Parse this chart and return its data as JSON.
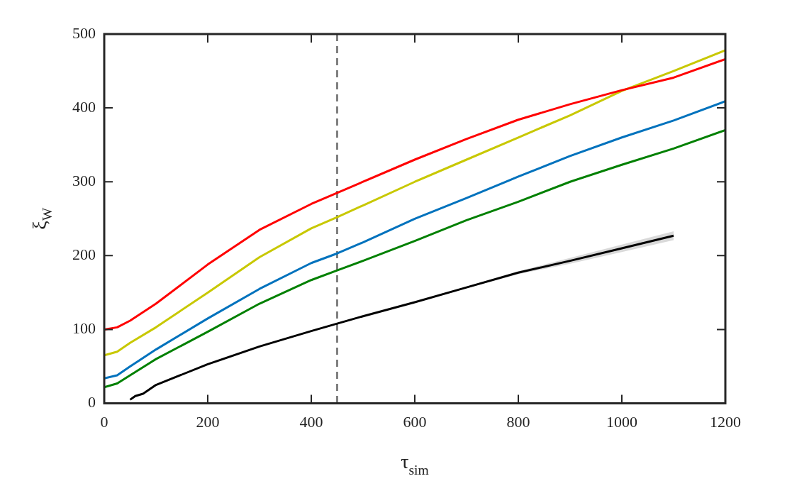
{
  "chart_data": {
    "type": "line",
    "xlabel": "τ$_{sim}$",
    "ylabel": "ξ$_{W}$",
    "xlim": [
      0,
      1200
    ],
    "ylim": [
      0,
      500
    ],
    "xticks": [
      0,
      200,
      400,
      600,
      800,
      1000,
      1200
    ],
    "yticks": [
      0,
      100,
      200,
      300,
      400,
      500
    ],
    "line_style": "solid",
    "marker": "none",
    "series": [
      {
        "color": "#ff0000",
        "x": [
          0,
          25,
          50,
          100,
          200,
          300,
          400,
          450,
          500,
          600,
          700,
          800,
          900,
          1000,
          1100,
          1200
        ],
        "values": [
          100,
          103,
          112,
          135,
          188,
          235,
          270,
          285,
          300,
          330,
          358,
          384,
          405,
          424,
          441,
          466
        ]
      },
      {
        "color": "#c8c800",
        "x": [
          0,
          25,
          50,
          100,
          200,
          300,
          400,
          450,
          500,
          600,
          700,
          800,
          900,
          1000,
          1100,
          1200
        ],
        "values": [
          65,
          70,
          82,
          103,
          150,
          198,
          237,
          252,
          268,
          300,
          330,
          360,
          390,
          423,
          450,
          478
        ]
      },
      {
        "color": "#0072bd",
        "x": [
          0,
          25,
          50,
          100,
          200,
          300,
          400,
          450,
          500,
          600,
          700,
          800,
          900,
          1000,
          1100,
          1200
        ],
        "values": [
          34,
          38,
          50,
          73,
          115,
          155,
          190,
          203,
          218,
          250,
          278,
          307,
          335,
          360,
          383,
          409
        ]
      },
      {
        "color": "#008000",
        "x": [
          0,
          25,
          50,
          100,
          200,
          300,
          400,
          450,
          500,
          600,
          700,
          800,
          900,
          1000,
          1100,
          1200
        ],
        "values": [
          22,
          27,
          38,
          60,
          97,
          135,
          167,
          180,
          193,
          220,
          248,
          273,
          300,
          323,
          345,
          370
        ]
      },
      {
        "color": "#000000",
        "x": [
          50,
          60,
          75,
          100,
          200,
          300,
          400,
          450,
          500,
          600,
          700,
          800,
          900,
          1000,
          1100
        ],
        "values": [
          5,
          10,
          13,
          25,
          53,
          77,
          98,
          108,
          118,
          137,
          157,
          177,
          193,
          210,
          227
        ],
        "lower": [
          5,
          10,
          13,
          25,
          53,
          77,
          98,
          108,
          118,
          137,
          156,
          175,
          189,
          205,
          221
        ],
        "upper": [
          5,
          10,
          13,
          25,
          53,
          77,
          98,
          108,
          118,
          137,
          158,
          179,
          197,
          215,
          233
        ]
      }
    ],
    "ref_lines": [
      {
        "axis": "x",
        "value": 450,
        "color": "#808080",
        "line_style": "dashed"
      }
    ]
  }
}
